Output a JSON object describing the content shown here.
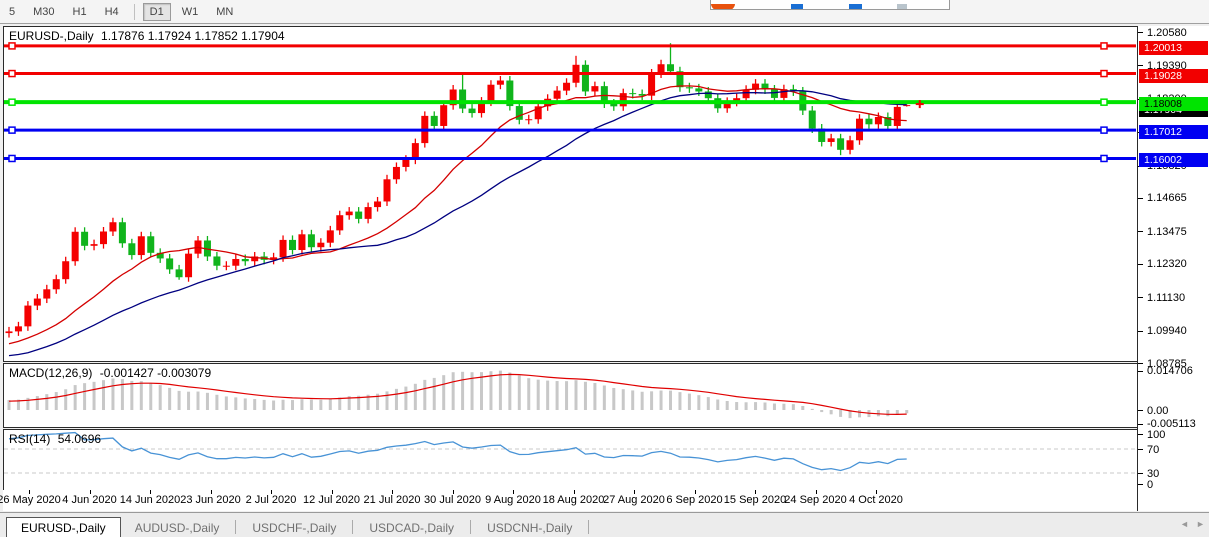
{
  "ui": {
    "toolbar": {
      "buttons": [
        {
          "label": "5",
          "active": false
        },
        {
          "label": "M30",
          "active": false
        },
        {
          "label": "H1",
          "active": false
        },
        {
          "label": "H4",
          "active": false
        },
        {
          "label": "D1",
          "active": true
        },
        {
          "label": "W1",
          "active": false
        },
        {
          "label": "MN",
          "active": false
        }
      ]
    },
    "chart_header": {
      "symbol": "EURUSD-,Daily",
      "ohlc": "1.17876 1.17924 1.17852 1.17904"
    },
    "tabs": {
      "items": [
        {
          "label": "EURUSD-,Daily",
          "active": true
        },
        {
          "label": "AUDUSD-,Daily",
          "active": false
        },
        {
          "label": "USDCHF-,Daily",
          "active": false
        },
        {
          "label": "USDCAD-,Daily",
          "active": false
        },
        {
          "label": "USDCNH-,Daily",
          "active": false
        }
      ],
      "nav_prev": "◄",
      "nav_next": "►"
    }
  },
  "chart_data": {
    "type": "candlestick",
    "symbol": "EURUSD-,Daily",
    "current_bar": {
      "open": 1.17876,
      "high": 1.17924,
      "low": 1.17852,
      "close": 1.17904
    },
    "colors": {
      "up": "#f40000",
      "down": "#10b41c",
      "ma_fast": "#d40000",
      "ma_slow": "#000080",
      "hline_red": "#f20000",
      "hline_green": "#00e400",
      "hline_blue": "#0000f2",
      "hist": "#c8c8c8",
      "signal": "#e00000",
      "rsi": "#4893d6",
      "level_dash": "#c8c8c8",
      "current_badge": "#000000"
    },
    "x_labels": [
      "26 May 2020",
      "4 Jun 2020",
      "14 Jun 2020",
      "23 Jun 2020",
      "2 Jul 2020",
      "12 Jul 2020",
      "21 Jul 2020",
      "30 Jul 2020",
      "9 Aug 2020",
      "18 Aug 2020",
      "27 Aug 2020",
      "6 Sep 2020",
      "15 Sep 2020",
      "24 Sep 2020",
      "4 Oct 2020"
    ],
    "y_axis": {
      "min": 1.08785,
      "max": 1.2058,
      "tick_labels": [
        "1.20580",
        "1.19390",
        "1.18200",
        "1.17010",
        "1.15820",
        "1.14665",
        "1.13475",
        "1.12320",
        "1.11130",
        "1.09940",
        "1.08785"
      ]
    },
    "closes": [
      1.0984,
      1.1002,
      1.1076,
      1.1101,
      1.1134,
      1.117,
      1.1234,
      1.1339,
      1.1289,
      1.1295,
      1.134,
      1.1373,
      1.1298,
      1.1256,
      1.1323,
      1.1264,
      1.1244,
      1.1205,
      1.1177,
      1.1261,
      1.1308,
      1.1251,
      1.1218,
      1.1218,
      1.1242,
      1.1234,
      1.1251,
      1.1239,
      1.1248,
      1.131,
      1.1274,
      1.133,
      1.1284,
      1.13,
      1.1344,
      1.1398,
      1.1411,
      1.1385,
      1.1427,
      1.1447,
      1.1526,
      1.157,
      1.1596,
      1.1655,
      1.1752,
      1.1716,
      1.179,
      1.1846,
      1.1778,
      1.1762,
      1.1803,
      1.1863,
      1.1878,
      1.1787,
      1.1738,
      1.174,
      1.1786,
      1.1813,
      1.1842,
      1.187,
      1.1934,
      1.1839,
      1.1858,
      1.1796,
      1.1786,
      1.1833,
      1.183,
      1.1824,
      1.1903,
      1.1936,
      1.1911,
      1.1854,
      1.185,
      1.1839,
      1.1815,
      1.1779,
      1.1802,
      1.1815,
      1.1845,
      1.1867,
      1.1846,
      1.1816,
      1.1847,
      1.1839,
      1.1771,
      1.1707,
      1.1659,
      1.1672,
      1.1631,
      1.1665,
      1.1742,
      1.1722,
      1.1748,
      1.1716,
      1.1784,
      1.17904
    ],
    "pre_window_closes": [
      1.0805,
      1.0812,
      1.082,
      1.0831,
      1.084,
      1.0852,
      1.0846,
      1.0858,
      1.0865,
      1.0872,
      1.088,
      1.0895,
      1.089,
      1.0902,
      1.0915,
      1.0908,
      1.0922,
      1.093,
      1.0945,
      1.094,
      1.0952,
      1.096,
      1.0972,
      1.0965,
      1.0978
    ],
    "wick_pad": 0.0016,
    "overrides": {
      "18": {
        "low": 1.1168
      },
      "48": {
        "high": 1.1908
      },
      "60": {
        "high": 1.1966
      },
      "70": {
        "high": 1.2011,
        "low": 1.1898
      },
      "88": {
        "low": 1.1612
      },
      "95": {
        "open": 1.17876,
        "high": 1.17924,
        "low": 1.17852,
        "close": 1.17904
      }
    },
    "hlines": [
      {
        "price": 1.20013,
        "label": "1.20013",
        "color": "#f20000",
        "width": 3
      },
      {
        "price": 1.19028,
        "label": "1.19028",
        "color": "#f20000",
        "width": 3
      },
      {
        "price": 1.18008,
        "label": "1.18008",
        "color": "#00e400",
        "width": 4
      },
      {
        "price": 1.17012,
        "label": "1.17012",
        "color": "#0000f2",
        "width": 3
      },
      {
        "price": 1.16002,
        "label": "1.16002",
        "color": "#0000f2",
        "width": 3
      }
    ],
    "current_price_label": "1.17904",
    "marker": {
      "shape": "plus",
      "color": "#f20000",
      "price": 1.1794
    },
    "moving_averages": [
      {
        "name": "ma-fast",
        "period": 14,
        "color": "#d40000"
      },
      {
        "name": "ma-slow",
        "period": 28,
        "color": "#000080"
      }
    ],
    "macd": {
      "label": "MACD(12,26,9)",
      "fast": 12,
      "slow": 26,
      "signal": 9,
      "values_text": "-0.001427 -0.003079",
      "axis_labels": [
        "0.014706",
        "0.00",
        "-0.005113"
      ]
    },
    "rsi": {
      "label": "RSI(14)",
      "period": 14,
      "value_text": "54.0696",
      "axis_labels": [
        "100",
        "70",
        "30",
        "0"
      ],
      "levels": [
        70,
        30
      ]
    }
  }
}
